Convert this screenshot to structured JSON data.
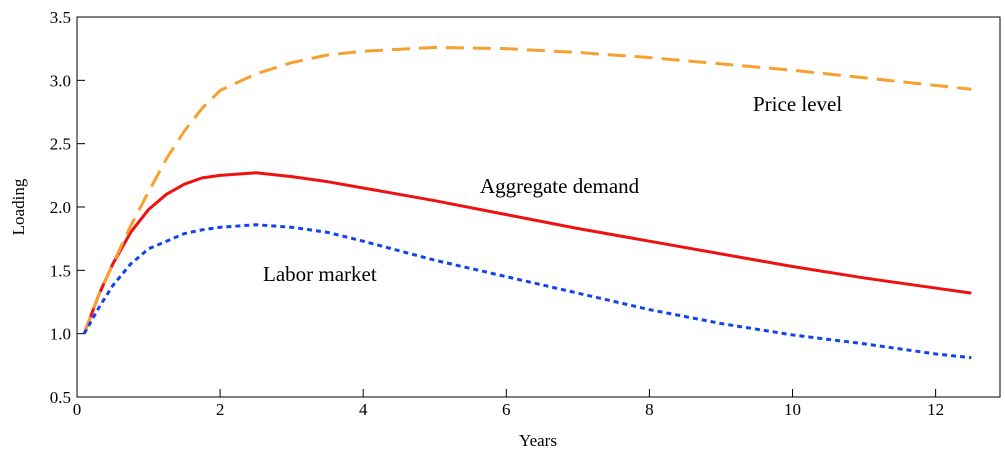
{
  "chart_data": {
    "type": "line",
    "x_label": "Years",
    "y_label": "Loading",
    "x": [
      0.1,
      0.3,
      0.5,
      0.75,
      1,
      1.25,
      1.5,
      1.75,
      2,
      2.5,
      3,
      3.5,
      4,
      5,
      6,
      7,
      8,
      9,
      10,
      11,
      12,
      12.5
    ],
    "series": [
      {
        "name": "Aggregate demand",
        "color": "#ee1111",
        "dash": "solid",
        "values": [
          1.0,
          1.3,
          1.55,
          1.8,
          1.98,
          2.1,
          2.18,
          2.23,
          2.25,
          2.27,
          2.24,
          2.2,
          2.15,
          2.05,
          1.94,
          1.83,
          1.73,
          1.63,
          1.53,
          1.44,
          1.36,
          1.32
        ]
      },
      {
        "name": "Price level",
        "color": "#f7a030",
        "dash": "dashed",
        "values": [
          1.0,
          1.3,
          1.55,
          1.85,
          2.12,
          2.38,
          2.6,
          2.78,
          2.92,
          3.05,
          3.14,
          3.2,
          3.23,
          3.26,
          3.25,
          3.22,
          3.18,
          3.13,
          3.08,
          3.02,
          2.96,
          2.93
        ]
      },
      {
        "name": "Labor market",
        "color": "#1144ee",
        "dash": "dotted",
        "values": [
          1.0,
          1.2,
          1.38,
          1.55,
          1.67,
          1.73,
          1.79,
          1.82,
          1.84,
          1.86,
          1.84,
          1.8,
          1.73,
          1.58,
          1.45,
          1.32,
          1.19,
          1.08,
          0.99,
          0.92,
          0.84,
          0.81
        ]
      }
    ],
    "xlim": [
      0,
      12.9
    ],
    "ylim": [
      0.5,
      3.5
    ],
    "xticks": [
      0,
      2,
      4,
      6,
      8,
      10,
      12
    ],
    "yticks": [
      0.5,
      {
        "value": 1,
        "label": "1.0"
      },
      1.5,
      {
        "value": 2,
        "label": "2.0"
      },
      2.5,
      {
        "value": 3,
        "label": "3.0"
      },
      3.5
    ],
    "grid": false
  }
}
